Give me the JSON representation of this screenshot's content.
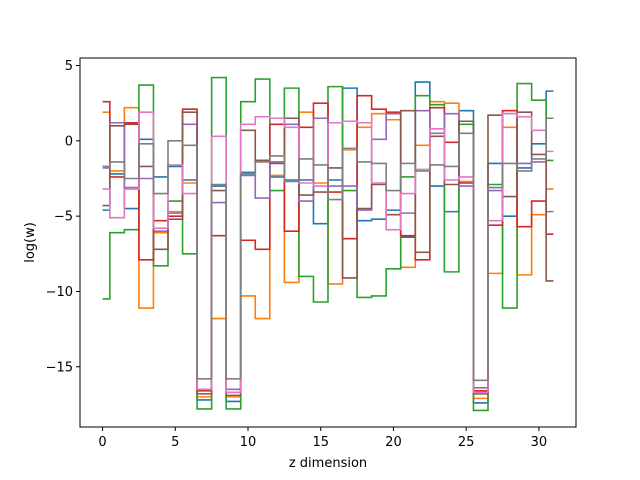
{
  "chart_data": {
    "type": "line",
    "drawstyle": "steps-mid",
    "xlabel": "z dimension",
    "ylabel": "log(w)",
    "xlim": [
      -1.55,
      32.55
    ],
    "ylim": [
      -19,
      5.5
    ],
    "xticks": [
      0,
      5,
      10,
      15,
      20,
      25,
      30
    ],
    "yticks": [
      5,
      0,
      -5,
      -10,
      -15
    ],
    "ytick_labels": [
      "5",
      "0",
      "−5",
      "−10",
      "−15"
    ],
    "grid": false,
    "x": [
      0,
      1,
      2,
      3,
      4,
      5,
      6,
      7,
      8,
      9,
      10,
      11,
      12,
      13,
      14,
      15,
      16,
      17,
      18,
      19,
      20,
      21,
      22,
      23,
      24,
      25,
      26,
      27,
      28,
      29,
      30,
      31
    ],
    "series": [
      {
        "color": "#1f77b4",
        "values": [
          -4.6,
          -2.2,
          -4.5,
          0.1,
          -2.4,
          -1.7,
          -2.6,
          -17.2,
          -3.0,
          -17.3,
          -2.1,
          -1.3,
          -2.4,
          -2.6,
          -2.6,
          -5.5,
          -2.6,
          3.5,
          -5.3,
          -5.2,
          -4.6,
          -6.4,
          3.9,
          -3.0,
          -4.7,
          2.0,
          -17.4,
          -1.5,
          -5.0,
          -1.8,
          -0.2,
          3.3
        ]
      },
      {
        "color": "#ff7f0e",
        "values": [
          1.9,
          -2.0,
          2.2,
          -11.1,
          -6.1,
          -4.7,
          -2.8,
          -17.0,
          -11.8,
          -17.0,
          -10.3,
          -11.8,
          -2.3,
          -9.4,
          1.9,
          -2.8,
          -9.5,
          -0.6,
          0.9,
          1.8,
          1.4,
          -8.4,
          -0.3,
          2.6,
          2.5,
          -2.7,
          -17.1,
          -8.8,
          0.9,
          -8.9,
          -4.9,
          -3.2
        ]
      },
      {
        "color": "#2ca02c",
        "values": [
          -10.5,
          -6.1,
          -5.9,
          3.7,
          -8.3,
          -4.0,
          -7.5,
          -17.8,
          4.2,
          -17.8,
          2.6,
          4.1,
          -3.3,
          3.5,
          -9.0,
          -10.7,
          3.6,
          -3.3,
          -10.4,
          -10.3,
          -8.5,
          -2.4,
          3.0,
          2.4,
          -8.7,
          1.1,
          -17.9,
          -2.9,
          -11.1,
          3.8,
          2.7,
          -1.3
        ]
      },
      {
        "color": "#d62728",
        "values": [
          2.6,
          -2.4,
          1.2,
          -7.9,
          -5.3,
          -5.0,
          2.1,
          -16.6,
          -6.3,
          -16.7,
          -6.6,
          -7.2,
          1.1,
          -6.0,
          0.9,
          2.5,
          -3.4,
          -6.5,
          3.0,
          2.1,
          1.9,
          -6.3,
          -7.9,
          2.2,
          -0.1,
          -2.8,
          -16.6,
          -5.6,
          2.0,
          -5.7,
          -4.0,
          -6.2
        ]
      },
      {
        "color": "#9467bd",
        "values": [
          -1.7,
          1.2,
          -3.1,
          -2.5,
          -6.0,
          -4.8,
          1.1,
          -16.5,
          -4.1,
          -16.5,
          -2.3,
          -3.8,
          -1.4,
          1.1,
          -4.0,
          1.5,
          -3.0,
          -3.0,
          -4.6,
          0.1,
          1.8,
          -4.8,
          2.0,
          0.5,
          1.8,
          -3.0,
          -16.4,
          -3.3,
          1.8,
          -1.5,
          -1.4,
          -4.7
        ]
      },
      {
        "color": "#8c564b",
        "values": [
          -4.3,
          1.0,
          1.1,
          -1.7,
          -7.2,
          -5.2,
          1.9,
          -16.8,
          -3.3,
          -16.9,
          0.7,
          -1.3,
          -1.5,
          1.5,
          -3.6,
          -3.4,
          -1.8,
          -9.1,
          -4.5,
          -2.9,
          -4.9,
          2.0,
          -7.4,
          0.3,
          -2.9,
          1.3,
          -16.8,
          1.7,
          -3.7,
          1.9,
          -0.9,
          -9.3
        ]
      },
      {
        "color": "#e377c2",
        "values": [
          -3.2,
          -5.1,
          -3.2,
          1.9,
          -5.8,
          -1.6,
          -3.5,
          -16.5,
          0.3,
          -16.7,
          1.1,
          1.6,
          1.5,
          0.9,
          -2.8,
          -3.0,
          1.2,
          1.3,
          1.2,
          -2.8,
          -5.9,
          -3.5,
          -1.9,
          0.8,
          -2.6,
          -2.4,
          -16.7,
          -5.3,
          1.8,
          1.6,
          0.7,
          -0.7
        ]
      },
      {
        "color": "#7f7f7f",
        "values": [
          -1.8,
          -1.4,
          -2.5,
          -0.2,
          -3.5,
          0.0,
          -0.3,
          -15.8,
          -2.9,
          -15.8,
          -2.2,
          -1.4,
          -1.0,
          -2.7,
          -1.2,
          -1.6,
          -3.9,
          -0.5,
          -1.4,
          -1.5,
          -3.3,
          -1.5,
          -2.0,
          -1.6,
          -1.7,
          0.5,
          -15.9,
          -3.1,
          -1.5,
          -2.0,
          -1.2,
          1.5
        ]
      }
    ]
  }
}
